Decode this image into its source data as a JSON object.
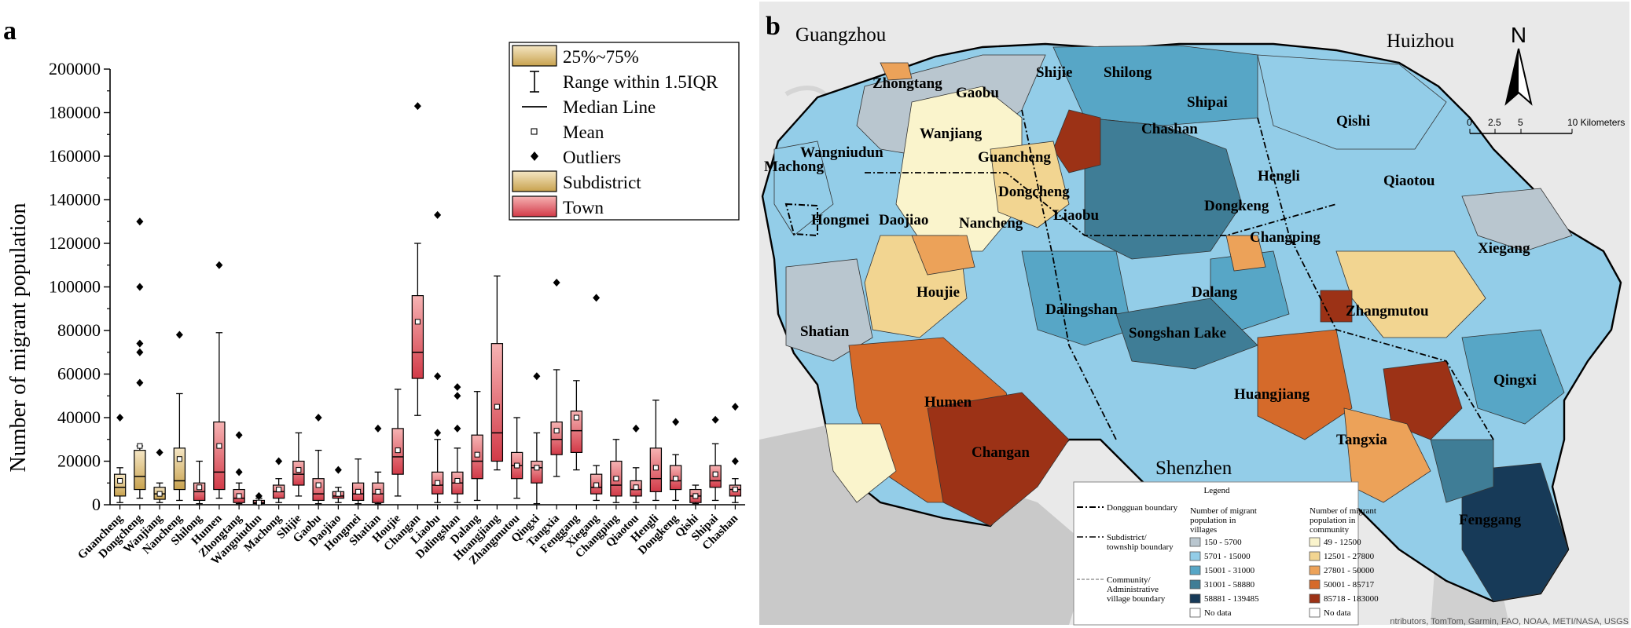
{
  "panel_a": {
    "label": "a"
  },
  "panel_b": {
    "label": "b"
  },
  "colors": {
    "subdistrict_light": "#f5e6c4",
    "subdistrict_dark": "#c8a24e",
    "town_light": "#f6b3b3",
    "town_dark": "#d23a48",
    "map_water": "#c9c9c9",
    "map_land_bg": "#e9e9e9"
  },
  "chart_data": {
    "type": "boxplot",
    "title": "",
    "xlabel": "",
    "ylabel": "Number of migrant population",
    "ylim": [
      0,
      200000
    ],
    "yticks": [
      0,
      20000,
      40000,
      60000,
      80000,
      100000,
      120000,
      140000,
      160000,
      180000,
      200000
    ],
    "ytick_labels": [
      "0",
      "20000",
      "40000",
      "60000",
      "80000",
      "100000",
      "120000",
      "140000",
      "160000",
      "180000",
      "200000"
    ],
    "legend": {
      "position": "top-right",
      "entries": [
        "25%~75%",
        "Range within 1.5IQR",
        "Median Line",
        "Mean",
        "Outliers",
        "Subdistrict",
        "Town"
      ]
    },
    "series": [
      {
        "name": "Guancheng",
        "kind": "subdistrict",
        "q1": 4000,
        "median": 8000,
        "q3": 14000,
        "whisker_low": 1000,
        "whisker_high": 17000,
        "mean": 11000,
        "outliers": [
          40000
        ]
      },
      {
        "name": "Dongcheng",
        "kind": "subdistrict",
        "q1": 7000,
        "median": 13000,
        "q3": 25000,
        "whisker_low": 3000,
        "whisker_high": 27000,
        "mean": 27000,
        "outliers": [
          56000,
          70000,
          74000,
          100000,
          130000
        ]
      },
      {
        "name": "Wanjiang",
        "kind": "subdistrict",
        "q1": 2500,
        "median": 5000,
        "q3": 8000,
        "whisker_low": 1000,
        "whisker_high": 10000,
        "mean": 5000,
        "outliers": [
          24000
        ]
      },
      {
        "name": "Nancheng",
        "kind": "subdistrict",
        "q1": 7000,
        "median": 11000,
        "q3": 26000,
        "whisker_low": 2000,
        "whisker_high": 51000,
        "mean": 21000,
        "outliers": [
          78000
        ]
      },
      {
        "name": "Shilong",
        "kind": "town",
        "q1": 2000,
        "median": 6000,
        "q3": 10000,
        "whisker_low": 500,
        "whisker_high": 20000,
        "mean": 8000,
        "outliers": []
      },
      {
        "name": "Humen",
        "kind": "town",
        "q1": 7000,
        "median": 15000,
        "q3": 38000,
        "whisker_low": 3000,
        "whisker_high": 79000,
        "mean": 27000,
        "outliers": [
          110000
        ]
      },
      {
        "name": "Zhongtang",
        "kind": "town",
        "q1": 1000,
        "median": 3000,
        "q3": 7000,
        "whisker_low": 500,
        "whisker_high": 10000,
        "mean": 4000,
        "outliers": [
          15000,
          32000
        ]
      },
      {
        "name": "Wangniudun",
        "kind": "town",
        "q1": 500,
        "median": 1000,
        "q3": 2000,
        "whisker_low": 0,
        "whisker_high": 3000,
        "mean": 1000,
        "outliers": [
          4000
        ]
      },
      {
        "name": "Machong",
        "kind": "town",
        "q1": 3000,
        "median": 6000,
        "q3": 9000,
        "whisker_low": 1000,
        "whisker_high": 12000,
        "mean": 7000,
        "outliers": [
          20000
        ]
      },
      {
        "name": "Shijie",
        "kind": "town",
        "q1": 9000,
        "median": 14000,
        "q3": 20000,
        "whisker_low": 4000,
        "whisker_high": 33000,
        "mean": 16000,
        "outliers": []
      },
      {
        "name": "Gaobu",
        "kind": "town",
        "q1": 2000,
        "median": 5000,
        "q3": 12000,
        "whisker_low": 500,
        "whisker_high": 25000,
        "mean": 9000,
        "outliers": [
          40000
        ]
      },
      {
        "name": "Daojiao",
        "kind": "town",
        "q1": 3000,
        "median": 4000,
        "q3": 6000,
        "whisker_low": 1000,
        "whisker_high": 8000,
        "mean": 5000,
        "outliers": [
          16000
        ]
      },
      {
        "name": "Hongmei",
        "kind": "town",
        "q1": 2000,
        "median": 5000,
        "q3": 10000,
        "whisker_low": 500,
        "whisker_high": 21000,
        "mean": 6000,
        "outliers": []
      },
      {
        "name": "Shatian",
        "kind": "town",
        "q1": 1000,
        "median": 5000,
        "q3": 10000,
        "whisker_low": 500,
        "whisker_high": 15000,
        "mean": 6000,
        "outliers": [
          35000
        ]
      },
      {
        "name": "Houjie",
        "kind": "town",
        "q1": 14000,
        "median": 22000,
        "q3": 35000,
        "whisker_low": 4000,
        "whisker_high": 53000,
        "mean": 25000,
        "outliers": []
      },
      {
        "name": "Changan",
        "kind": "town",
        "q1": 58000,
        "median": 70000,
        "q3": 96000,
        "whisker_low": 41000,
        "whisker_high": 120000,
        "mean": 84000,
        "outliers": [
          183000
        ]
      },
      {
        "name": "Liaobu",
        "kind": "town",
        "q1": 5000,
        "median": 9000,
        "q3": 15000,
        "whisker_low": 1000,
        "whisker_high": 30000,
        "mean": 10000,
        "outliers": [
          33000,
          59000,
          133000
        ]
      },
      {
        "name": "Dalingshan",
        "kind": "town",
        "q1": 5000,
        "median": 10000,
        "q3": 15000,
        "whisker_low": 1000,
        "whisker_high": 26000,
        "mean": 11000,
        "outliers": [
          35000,
          50000,
          54000
        ]
      },
      {
        "name": "Dalang",
        "kind": "town",
        "q1": 12000,
        "median": 20000,
        "q3": 32000,
        "whisker_low": 2000,
        "whisker_high": 52000,
        "mean": 23000,
        "outliers": []
      },
      {
        "name": "Huangjiang",
        "kind": "town",
        "q1": 20000,
        "median": 33000,
        "q3": 74000,
        "whisker_low": 16000,
        "whisker_high": 105000,
        "mean": 45000,
        "outliers": []
      },
      {
        "name": "Zhangmutou",
        "kind": "town",
        "q1": 12000,
        "median": 18000,
        "q3": 24000,
        "whisker_low": 3000,
        "whisker_high": 40000,
        "mean": 18000,
        "outliers": []
      },
      {
        "name": "Qingxi",
        "kind": "town",
        "q1": 10000,
        "median": 17000,
        "q3": 20000,
        "whisker_low": 500,
        "whisker_high": 33000,
        "mean": 17000,
        "outliers": [
          59000
        ]
      },
      {
        "name": "Tangxia",
        "kind": "town",
        "q1": 23000,
        "median": 30000,
        "q3": 38000,
        "whisker_low": 13000,
        "whisker_high": 62000,
        "mean": 34000,
        "outliers": [
          102000
        ]
      },
      {
        "name": "Fenggang",
        "kind": "town",
        "q1": 24000,
        "median": 34000,
        "q3": 43000,
        "whisker_low": 16000,
        "whisker_high": 57000,
        "mean": 40000,
        "outliers": []
      },
      {
        "name": "Xiegang",
        "kind": "town",
        "q1": 5000,
        "median": 8000,
        "q3": 14000,
        "whisker_low": 2000,
        "whisker_high": 18000,
        "mean": 9000,
        "outliers": [
          95000
        ]
      },
      {
        "name": "Changping",
        "kind": "town",
        "q1": 4000,
        "median": 9000,
        "q3": 20000,
        "whisker_low": 1000,
        "whisker_high": 30000,
        "mean": 12000,
        "outliers": []
      },
      {
        "name": "Qiaotou",
        "kind": "town",
        "q1": 4000,
        "median": 7000,
        "q3": 11000,
        "whisker_low": 1000,
        "whisker_high": 17000,
        "mean": 8000,
        "outliers": [
          35000
        ]
      },
      {
        "name": "Hengli",
        "kind": "town",
        "q1": 6000,
        "median": 12000,
        "q3": 26000,
        "whisker_low": 2000,
        "whisker_high": 48000,
        "mean": 17000,
        "outliers": []
      },
      {
        "name": "Dongkeng",
        "kind": "town",
        "q1": 7000,
        "median": 11000,
        "q3": 18000,
        "whisker_low": 2000,
        "whisker_high": 23000,
        "mean": 12000,
        "outliers": [
          38000
        ]
      },
      {
        "name": "Qishi",
        "kind": "town",
        "q1": 1000,
        "median": 4000,
        "q3": 7000,
        "whisker_low": 500,
        "whisker_high": 9000,
        "mean": 4000,
        "outliers": []
      },
      {
        "name": "Shipai",
        "kind": "town",
        "q1": 8000,
        "median": 11000,
        "q3": 18000,
        "whisker_low": 2000,
        "whisker_high": 28000,
        "mean": 14000,
        "outliers": [
          39000
        ]
      },
      {
        "name": "Chashan",
        "kind": "town",
        "q1": 4000,
        "median": 7000,
        "q3": 9000,
        "whisker_low": 1000,
        "whisker_high": 12000,
        "mean": 7000,
        "outliers": [
          20000,
          45000
        ]
      }
    ]
  },
  "map": {
    "cities": [
      "Guangzhou",
      "Huizhou",
      "Shenzhen"
    ],
    "north_label": "N",
    "scale": {
      "ticks": [
        "0",
        "2.5",
        "5",
        "10 Kilometers"
      ]
    },
    "attribution": "ntributors, TomTom, Garmin, FAO, NOAA, METI/NASA, USGS",
    "labels": [
      "Zhongtang",
      "Shijie",
      "Shilong",
      "Gaobu",
      "Shipai",
      "Qishi",
      "Wanjiang",
      "Wangniudun",
      "Guancheng",
      "Chashan",
      "Machong",
      "Hengli",
      "Qiaotou",
      "Dongcheng",
      "Hongmei",
      "Daojiao",
      "Nancheng",
      "Liaobu",
      "Dongkeng",
      "Changping",
      "Xiegang",
      "Houjie",
      "Dalang",
      "Dalingshan",
      "Zhangmutou",
      "Shatian",
      "Songshan Lake",
      "Qingxi",
      "Humen",
      "Huangjiang",
      "Tangxia",
      "Changan",
      "Fenggang"
    ],
    "legend": {
      "title": "Legend",
      "boundaries": [
        "Dongguan boundary",
        "Subdistrict/ township boundary",
        "Community/ Administrative village boundary"
      ],
      "villages_title": "Number of migrant population in villages",
      "villages": [
        {
          "label": "150 - 5700",
          "color": "#b9c6cf"
        },
        {
          "label": "5701 - 15000",
          "color": "#93cde8"
        },
        {
          "label": "15001 - 31000",
          "color": "#57a6c6"
        },
        {
          "label": "31001 - 58880",
          "color": "#3f7d96"
        },
        {
          "label": "58881 - 139485",
          "color": "#173a58"
        }
      ],
      "villages_nodata": "No data",
      "community_title": "Number of migrant population in community",
      "community": [
        {
          "label": "49 - 12500",
          "color": "#faf4cc"
        },
        {
          "label": "12501 - 27800",
          "color": "#f2d591"
        },
        {
          "label": "27801 - 50000",
          "color": "#eca259"
        },
        {
          "label": "50001 - 85717",
          "color": "#d56a2a"
        },
        {
          "label": "85718 - 183000",
          "color": "#9c3216"
        }
      ],
      "community_nodata": "No data"
    }
  }
}
